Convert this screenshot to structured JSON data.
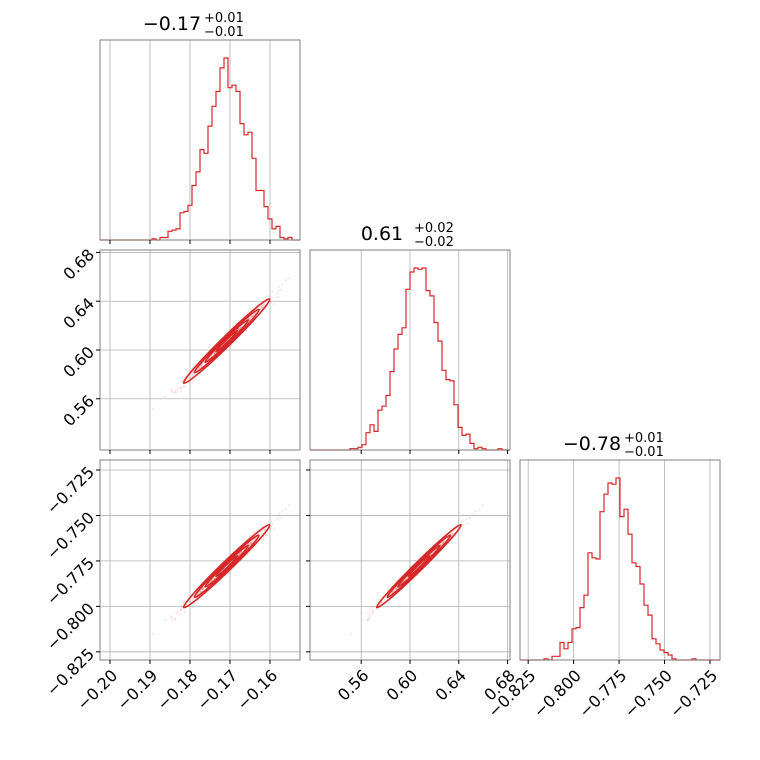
{
  "chart_data": {
    "type": "corner",
    "color": "#d62728",
    "parameters": [
      {
        "title_value": "−0.17",
        "title_plus": "+0.01",
        "title_minus": "−0.01",
        "range": [
          -0.2025,
          -0.1525
        ],
        "ticks": [
          -0.2,
          -0.19,
          -0.18,
          -0.17,
          -0.16
        ],
        "tick_labels": [
          "−0.20",
          "−0.19",
          "−0.18",
          "−0.17",
          "−0.16"
        ],
        "hist_peak_x": -0.1706,
        "hist_sigma": 0.0054
      },
      {
        "title_value": "0.61",
        "title_plus": "+0.02",
        "title_minus": "−0.02",
        "range": [
          0.518,
          0.682
        ],
        "ticks": [
          0.56,
          0.6,
          0.64,
          0.68
        ],
        "tick_labels": [
          "0.56",
          "0.60",
          "0.64",
          "0.68"
        ],
        "hist_peak_x": 0.608,
        "hist_sigma": 0.0175
      },
      {
        "title_value": "−0.78",
        "title_plus": "+0.01",
        "title_minus": "−0.01",
        "range": [
          -0.8295,
          -0.7195
        ],
        "ticks": [
          -0.825,
          -0.8,
          -0.775,
          -0.75,
          -0.725
        ],
        "tick_labels": [
          "−0.825",
          "−0.800",
          "−0.775",
          "−0.750",
          "−0.725"
        ],
        "hist_peak_x": -0.7775,
        "hist_sigma": 0.0115
      }
    ],
    "grid": true,
    "contour_levels": 4
  }
}
